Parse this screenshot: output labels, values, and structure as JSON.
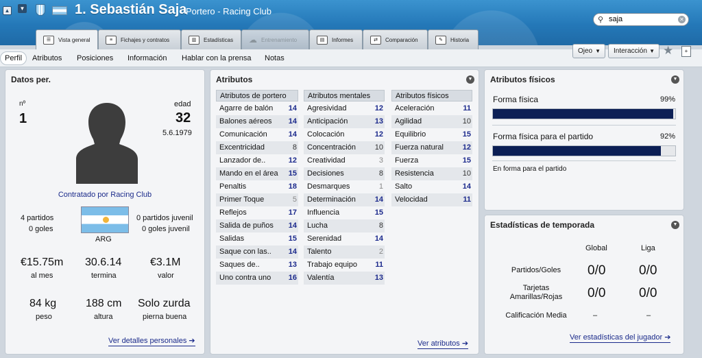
{
  "header": {
    "player_title": "1. Sebastián Saja",
    "player_sub": "Portero - Racing Club",
    "search_value": "saja"
  },
  "tabs": [
    {
      "label": "Vista general",
      "icon": "profile-icon"
    },
    {
      "label": "Fichajes y contratos",
      "icon": "document-icon"
    },
    {
      "label": "Estadísticas",
      "icon": "stats-icon"
    },
    {
      "label": "Entrenamiento",
      "icon": "cloud-icon"
    },
    {
      "label": "Informes",
      "icon": "report-icon"
    },
    {
      "label": "Comparación",
      "icon": "compare-icon"
    },
    {
      "label": "Historia",
      "icon": "history-icon"
    }
  ],
  "subnav": [
    "Perfil",
    "Atributos",
    "Posiciones",
    "Información",
    "Hablar con la prensa",
    "Notas"
  ],
  "actions": {
    "ojeo": "Ojeo",
    "interaccion": "Interacción"
  },
  "personal": {
    "title": "Datos per.",
    "num_label": "nº",
    "num": "1",
    "age_label": "edad",
    "age": "32",
    "dob": "5.6.1979",
    "contract": "Contratado por Racing Club",
    "partidos": "4 partidos",
    "goles": "0 goles",
    "partidos_juv": "0 partidos juvenil",
    "goles_juv": "0 goles juvenil",
    "nation": "ARG",
    "wage": "€15.75m",
    "wage_label": "al mes",
    "expires": "30.6.14",
    "expires_label": "termina",
    "value": "€3.1M",
    "value_label": "valor",
    "weight": "84 kg",
    "weight_label": "peso",
    "height": "188 cm",
    "height_label": "altura",
    "foot": "Solo zurda",
    "foot_label": "pierna buena",
    "link": "Ver detalles personales"
  },
  "attributes": {
    "title": "Atributos",
    "link": "Ver atributos",
    "columns": [
      {
        "header": "Atributos de portero",
        "rows": [
          [
            "Agarre de balón",
            "14"
          ],
          [
            "Balones aéreos",
            "14"
          ],
          [
            "Comunicación",
            "14"
          ],
          [
            "Excentricidad",
            "8"
          ],
          [
            "Lanzador de..",
            "12"
          ],
          [
            "Mando en el área",
            "15"
          ],
          [
            "Penaltis",
            "18"
          ],
          [
            "Primer Toque",
            "5"
          ],
          [
            "Reflejos",
            "17"
          ],
          [
            "Salida de puños",
            "14"
          ],
          [
            "Salidas",
            "15"
          ],
          [
            "Saque con las..",
            "14"
          ],
          [
            "Saques de..",
            "13"
          ],
          [
            "Uno contra uno",
            "16"
          ]
        ]
      },
      {
        "header": "Atributos mentales",
        "rows": [
          [
            "Agresividad",
            "12"
          ],
          [
            "Anticipación",
            "13"
          ],
          [
            "Colocación",
            "12"
          ],
          [
            "Concentración",
            "10"
          ],
          [
            "Creatividad",
            "3"
          ],
          [
            "Decisiones",
            "8"
          ],
          [
            "Desmarques",
            "1"
          ],
          [
            "Determinación",
            "14"
          ],
          [
            "Influencia",
            "15"
          ],
          [
            "Lucha",
            "8"
          ],
          [
            "Serenidad",
            "14"
          ],
          [
            "Talento",
            "2"
          ],
          [
            "Trabajo equipo",
            "11"
          ],
          [
            "Valentía",
            "13"
          ]
        ]
      },
      {
        "header": "Atributos físicos",
        "rows": [
          [
            "Aceleración",
            "11"
          ],
          [
            "Agilidad",
            "10"
          ],
          [
            "Equilibrio",
            "15"
          ],
          [
            "Fuerza natural",
            "12"
          ],
          [
            "Fuerza",
            "15"
          ],
          [
            "Resistencia",
            "10"
          ],
          [
            "Salto",
            "14"
          ],
          [
            "Velocidad",
            "11"
          ]
        ]
      }
    ]
  },
  "physical": {
    "title": "Atributos físicos",
    "forma_label": "Forma física",
    "forma_value": "99%",
    "forma_pct": 99,
    "partido_label": "Forma física para el partido",
    "partido_value": "92%",
    "partido_pct": 92,
    "note": "En forma para el partido"
  },
  "season": {
    "title": "Estadísticas de temporada",
    "col_global": "Global",
    "col_liga": "Liga",
    "rows": [
      {
        "label": "Partidos/Goles",
        "global": "0/0",
        "liga": "0/0"
      },
      {
        "label": "Tarjetas Amarillas/Rojas",
        "global": "0/0",
        "liga": "0/0"
      },
      {
        "label": "Calificación Media",
        "global": "–",
        "liga": "–"
      }
    ],
    "link": "Ver estadísticas del jugador"
  }
}
